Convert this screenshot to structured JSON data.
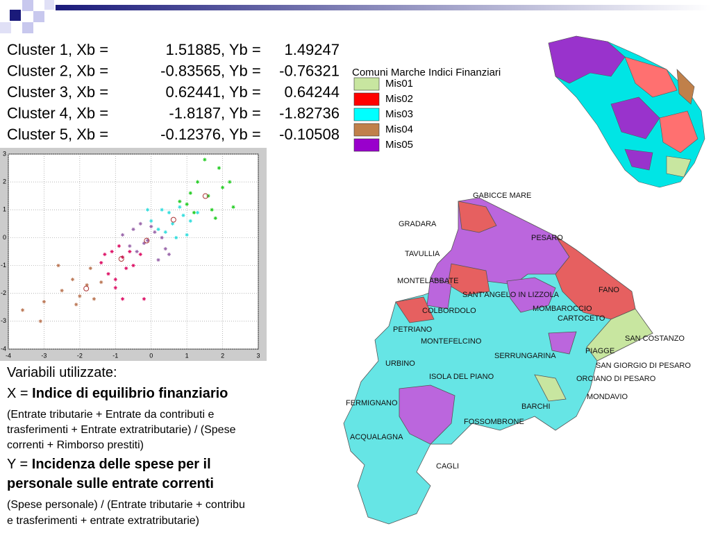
{
  "clusters": [
    {
      "label": "Cluster 1, Xb =",
      "xb": 1.51885,
      "sep": ", Yb =",
      "yb": 1.49247
    },
    {
      "label": "Cluster 2, Xb =",
      "xb": -0.83565,
      "sep": ", Yb =",
      "yb": -0.76321
    },
    {
      "label": "Cluster 3, Xb =",
      "xb": 0.62441,
      "sep": ", Yb =",
      "yb": 0.64244
    },
    {
      "label": "Cluster 4, Xb =",
      "xb": -1.8187,
      "sep": ", Yb =",
      "yb": -1.82736
    },
    {
      "label": "Cluster 5, Xb =",
      "xb": -0.12376,
      "sep": ", Yb =",
      "yb": -0.10508
    }
  ],
  "chart_data": {
    "type": "scatter",
    "xlim": [
      -4,
      3
    ],
    "ylim": [
      -4,
      3
    ],
    "xticks": [
      -4,
      -3,
      -2,
      -1,
      0,
      1,
      2,
      3
    ],
    "yticks": [
      -4,
      -3,
      -2,
      -1,
      0,
      1,
      2,
      3
    ],
    "grid": true,
    "series": [
      {
        "color": "#22cc22",
        "x": [
          1.0,
          1.3,
          1.6,
          1.9,
          2.2,
          1.2,
          1.7,
          2.0,
          0.8,
          1.5,
          2.3,
          1.1,
          1.8
        ],
        "y": [
          1.2,
          2.0,
          1.5,
          2.5,
          2.0,
          0.9,
          1.0,
          1.8,
          1.3,
          2.8,
          1.1,
          1.6,
          0.7
        ]
      },
      {
        "color": "#33dddd",
        "x": [
          0.0,
          0.3,
          0.6,
          0.9,
          0.4,
          0.8,
          1.1,
          0.2,
          0.5,
          1.0,
          -0.1,
          0.7,
          1.3
        ],
        "y": [
          0.6,
          1.0,
          0.5,
          0.8,
          0.2,
          1.1,
          0.6,
          0.3,
          0.9,
          0.1,
          1.0,
          0.0,
          0.9
        ]
      },
      {
        "color": "#9966aa",
        "x": [
          -0.8,
          -0.5,
          -0.2,
          0.1,
          0.4,
          -0.4,
          0.0,
          0.3,
          -0.6,
          0.2,
          -0.1,
          0.5,
          -0.3
        ],
        "y": [
          0.1,
          0.3,
          -0.2,
          0.2,
          -0.4,
          -0.5,
          0.4,
          0.0,
          -0.3,
          -0.8,
          -0.1,
          -0.6,
          0.5
        ]
      },
      {
        "color": "#dd1166",
        "x": [
          -1.4,
          -1.1,
          -0.8,
          -0.5,
          -1.2,
          -0.9,
          -0.6,
          -1.0,
          -0.7,
          -0.3,
          -1.3,
          -0.8,
          -0.2,
          -1.0
        ],
        "y": [
          -0.9,
          -0.5,
          -0.7,
          -1.0,
          -1.3,
          -0.3,
          -0.5,
          -1.5,
          -1.1,
          -0.6,
          -0.6,
          -2.2,
          -2.2,
          -1.8
        ]
      },
      {
        "color": "#bb7755",
        "x": [
          -2.5,
          -2.2,
          -2.0,
          -1.8,
          -1.6,
          -1.4,
          -2.1,
          -1.7,
          -3.0,
          -2.6,
          -3.6,
          -3.1
        ],
        "y": [
          -1.9,
          -1.5,
          -2.1,
          -1.7,
          -2.2,
          -1.6,
          -2.4,
          -1.1,
          -2.3,
          -1.0,
          -2.6,
          -3.0
        ]
      }
    ]
  },
  "legend": {
    "title": "Comuni Marche Indici  Finanziari",
    "items": [
      {
        "label": "Mis01",
        "color": "#c8e6a0"
      },
      {
        "label": "Mis02",
        "color": "#ff0000"
      },
      {
        "label": "Mis03",
        "color": "#00ffff"
      },
      {
        "label": "Mis04",
        "color": "#c0804a"
      },
      {
        "label": "Mis05",
        "color": "#9900cc"
      }
    ]
  },
  "map_labels": [
    "GABICCE MARE",
    "GRADARA",
    "PESARO",
    "TAVULLIA",
    "MONTELABBATE",
    "SANT'ANGELO IN LIZZOLA",
    "FANO",
    "COLBORDOLO",
    "MOMBAROCCIO",
    "CARTOCETO",
    "PETRIANO",
    "MONTEFELCINO",
    "SAN COSTANZO",
    "PIAGGE",
    "SERRUNGARINA",
    "URBINO",
    "SAN GIORGIO DI PESARO",
    "ISOLA DEL PIANO",
    "ORCIANO DI PESARO",
    "MONDAVIO",
    "FERMIGNANO",
    "BARCHI",
    "FOSSOMBRONE",
    "ACQUALAGNA",
    "CAGLI"
  ],
  "notes": {
    "heading": "Variabili utilizzate:",
    "x_prefix": "X = ",
    "x_name": "Indice di equilibrio finanziario",
    "x_formula": [
      "(Entrate tributarie + Entrate da contributi e",
      "trasferimenti + Entrate extratributarie) / (Spese",
      "correnti + Rimborso prestiti)"
    ],
    "y_prefix": "Y = ",
    "y_name": [
      "Incidenza delle spese per il",
      "personale sulle entrate correnti"
    ],
    "y_formula": [
      "(Spese personale) / (Entrate tributarie + contribu",
      "e trasferimenti + entrate extratributarie)"
    ]
  }
}
